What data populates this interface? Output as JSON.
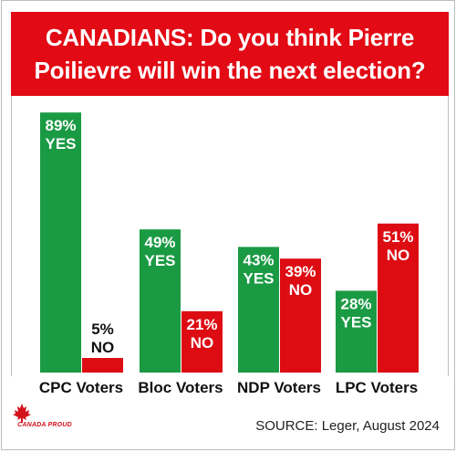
{
  "header": {
    "line1": "CANADIANS: Do you think Pierre",
    "line2": "Poilievre will win the next election?"
  },
  "source": "SOURCE: Leger, August 2024",
  "logo": {
    "icon": "maple-leaf-icon",
    "text": "CANADA PROUD"
  },
  "colors": {
    "yes": "#1b9a44",
    "no": "#dd0c13",
    "header": "#e20a14",
    "label_yes": "#ffffff",
    "label_no": "#111111"
  },
  "chart_data": {
    "type": "bar",
    "title": "CANADIANS: Do you think Pierre Poilievre will win the next election?",
    "categories": [
      "CPC Voters",
      "Bloc Voters",
      "NDP Voters",
      "LPC Voters"
    ],
    "series": [
      {
        "name": "YES",
        "values": [
          89,
          49,
          43,
          28
        ],
        "labels": [
          "89%",
          "49%",
          "43%",
          "28%"
        ]
      },
      {
        "name": "NO",
        "values": [
          5,
          21,
          39,
          51
        ],
        "labels": [
          "5%",
          "21%",
          "39%",
          "51%"
        ]
      }
    ],
    "ylim": [
      0,
      100
    ],
    "grid": false,
    "xlabel": "",
    "ylabel": ""
  }
}
